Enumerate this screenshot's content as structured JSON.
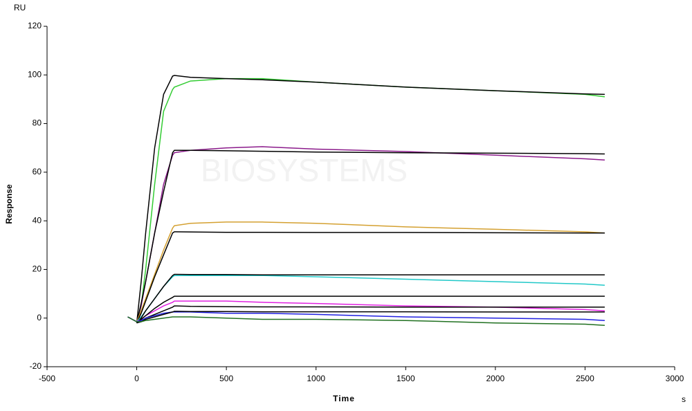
{
  "chart_data": {
    "type": "line",
    "y_unit": "RU",
    "y_label": "Response",
    "x_label": "Time",
    "x_unit": "s",
    "watermark": "BIOSYSTEMS",
    "x": [
      -50,
      0,
      25,
      50,
      100,
      150,
      200,
      210,
      300,
      500,
      700,
      1000,
      1500,
      2000,
      2500,
      2610
    ],
    "xlim": [
      -500,
      3000
    ],
    "xticks": [
      -500,
      0,
      500,
      1000,
      1500,
      2000,
      2500,
      3000
    ],
    "ylim": [
      -20,
      120
    ],
    "yticks": [
      -20,
      0,
      20,
      40,
      60,
      80,
      100,
      120
    ],
    "series": [
      {
        "color": "#33cc33",
        "values": [
          0.5,
          -1.5,
          5,
          20,
          55,
          85,
          94,
          95,
          97.5,
          98.5,
          98.5,
          97,
          95,
          93.5,
          92,
          91
        ]
      },
      {
        "color": "#000000",
        "values": [
          null,
          -2,
          15,
          35,
          70,
          92,
          99.5,
          99.8,
          99,
          98.5,
          98,
          97,
          95,
          93.5,
          92.2,
          92
        ]
      },
      {
        "color": "#8b1a8b",
        "values": [
          0.5,
          -1.5,
          5,
          15,
          35,
          55,
          67,
          68,
          69,
          70,
          70.5,
          69.5,
          68.5,
          67,
          65.5,
          65
        ]
      },
      {
        "color": "#000000",
        "values": [
          null,
          -2,
          6,
          15,
          35,
          52,
          68,
          69,
          69,
          68.8,
          68.6,
          68.3,
          68,
          67.8,
          67.6,
          67.5
        ]
      },
      {
        "color": "#d4a030",
        "values": [
          0.5,
          -1.5,
          3,
          8,
          18,
          28,
          37,
          38,
          39,
          39.5,
          39.5,
          39,
          37.5,
          36.5,
          35.5,
          35
        ]
      },
      {
        "color": "#000000",
        "values": [
          null,
          -2,
          2,
          7,
          17,
          26,
          35,
          35.5,
          35.4,
          35.3,
          35.3,
          35.2,
          35.2,
          35.1,
          35,
          35
        ]
      },
      {
        "color": "#20c8c8",
        "values": [
          0.5,
          -1.5,
          0.5,
          3,
          8,
          13,
          17,
          17.5,
          17.5,
          17.5,
          17.5,
          17,
          16,
          15,
          14,
          13.5
        ]
      },
      {
        "color": "#000000",
        "values": [
          null,
          -2,
          0,
          3,
          8,
          13,
          17.5,
          18,
          17.9,
          17.9,
          17.8,
          17.8,
          17.8,
          17.8,
          17.8,
          17.8
        ]
      },
      {
        "color": "#e020e0",
        "values": [
          0.5,
          -1.5,
          -0.5,
          1,
          3,
          5,
          6.5,
          7,
          7,
          7,
          6.5,
          6,
          5,
          4.5,
          3.5,
          3
        ]
      },
      {
        "color": "#000000",
        "values": [
          null,
          -2,
          -0.5,
          1,
          4,
          6.5,
          8.5,
          9,
          9,
          9,
          9,
          9,
          9,
          9,
          9,
          9
        ]
      },
      {
        "color": "#000000",
        "values": [
          null,
          -2,
          -1,
          0,
          1.5,
          3,
          4.5,
          5,
          4.8,
          4.7,
          4.6,
          4.6,
          4.5,
          4.5,
          4.5,
          4.5
        ]
      },
      {
        "color": "#2020e0",
        "values": [
          0.5,
          -1.5,
          -1,
          0,
          1,
          2,
          2.5,
          2.5,
          2.5,
          2,
          2,
          1.5,
          0.5,
          0,
          -0.5,
          -1
        ]
      },
      {
        "color": "#000000",
        "values": [
          null,
          -2,
          -1.5,
          -0.5,
          0.5,
          1.5,
          2.5,
          2.8,
          2.7,
          2.7,
          2.6,
          2.6,
          2.6,
          2.5,
          2.5,
          2.5
        ]
      },
      {
        "color": "#207020",
        "values": [
          0.5,
          -1.5,
          -1.5,
          -1,
          -0.5,
          0,
          0.5,
          0.5,
          0.5,
          0,
          -0.5,
          -0.5,
          -1,
          -2,
          -2.5,
          -3
        ]
      }
    ]
  }
}
